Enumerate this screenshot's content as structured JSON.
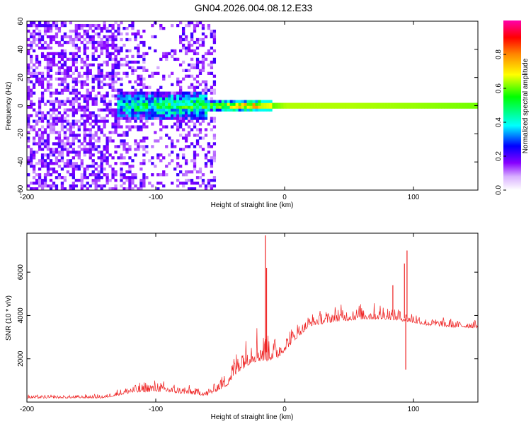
{
  "figure_title": "GN04.2026.004.08.12.E33",
  "colors": {
    "snr_line": "#ee2222",
    "frame": "#000000"
  },
  "chart_data": [
    {
      "type": "heatmap",
      "title": "GN04.2026.004.08.12.E33",
      "xlabel": "Height of straight line (km)",
      "ylabel": "Frequency (Hz)",
      "xlim": [
        -200,
        150
      ],
      "ylim": [
        -60,
        60
      ],
      "xticks": [
        -200,
        -100,
        0,
        100
      ],
      "yticks": [
        60,
        40,
        20,
        0,
        -20,
        -40,
        -60
      ],
      "colorbar": {
        "label": "Normalized spectral amplitude",
        "range": [
          0,
          1
        ],
        "ticks": [
          0.0,
          0.2,
          0.4,
          0.6,
          0.8
        ],
        "colormap": [
          "#ffffff",
          "#8800ff",
          "#0000ff",
          "#00ffff",
          "#00ff00",
          "#ffff00",
          "#ff8800",
          "#ff0000",
          "#ff00aa"
        ]
      },
      "description_points": {
        "noise_region_km": [
          -200,
          -55
        ],
        "central_band_km": [
          -130,
          150
        ],
        "central_band_freq_hz": 0,
        "central_band_amplitude_at_km": [
          {
            "x": -130,
            "v": 0.35
          },
          {
            "x": -100,
            "v": 0.45
          },
          {
            "x": -60,
            "v": 0.5
          },
          {
            "x": -40,
            "v": 0.7
          },
          {
            "x": -15,
            "v": 0.8
          },
          {
            "x": 0,
            "v": 0.9
          },
          {
            "x": 50,
            "v": 0.9
          },
          {
            "x": 100,
            "v": 0.88
          },
          {
            "x": 150,
            "v": 0.85
          }
        ]
      }
    },
    {
      "type": "line",
      "xlabel": "Height of straight line (km)",
      "ylabel": "SNR (10 * v/v)",
      "xlim": [
        -200,
        150
      ],
      "ylim": [
        0,
        7800
      ],
      "xticks": [
        -200,
        -100,
        0,
        100
      ],
      "yticks": [
        2000,
        4000,
        6000
      ],
      "series": [
        {
          "name": "SNR",
          "envelope": [
            {
              "x": -200,
              "lo": 80,
              "hi": 350
            },
            {
              "x": -140,
              "lo": 80,
              "hi": 380
            },
            {
              "x": -120,
              "lo": 150,
              "hi": 900
            },
            {
              "x": -100,
              "lo": 200,
              "hi": 1050
            },
            {
              "x": -80,
              "lo": 150,
              "hi": 850
            },
            {
              "x": -60,
              "lo": 100,
              "hi": 650
            },
            {
              "x": -45,
              "lo": 200,
              "hi": 1700
            },
            {
              "x": -35,
              "lo": 400,
              "hi": 3300
            },
            {
              "x": -25,
              "lo": 800,
              "hi": 3800
            },
            {
              "x": -15,
              "lo": 900,
              "hi": 3700
            },
            {
              "x": -5,
              "lo": 1400,
              "hi": 3200
            },
            {
              "x": 10,
              "lo": 2600,
              "hi": 3700
            },
            {
              "x": 20,
              "lo": 3200,
              "hi": 4100
            },
            {
              "x": 40,
              "lo": 3300,
              "hi": 4500
            },
            {
              "x": 60,
              "lo": 3400,
              "hi": 4600
            },
            {
              "x": 80,
              "lo": 3400,
              "hi": 4600
            },
            {
              "x": 95,
              "lo": 3400,
              "hi": 4300
            },
            {
              "x": 110,
              "lo": 3300,
              "hi": 4000
            },
            {
              "x": 130,
              "lo": 3200,
              "hi": 3900
            },
            {
              "x": 150,
              "lo": 3200,
              "hi": 3850
            }
          ],
          "spikes": [
            {
              "x": -15,
              "y": 7700
            },
            {
              "x": -14,
              "y": 6200
            },
            {
              "x": 93,
              "y": 6400
            },
            {
              "x": 94,
              "y": 1500
            },
            {
              "x": 95,
              "y": 7000
            },
            {
              "x": 84,
              "y": 5400
            }
          ]
        }
      ]
    }
  ]
}
